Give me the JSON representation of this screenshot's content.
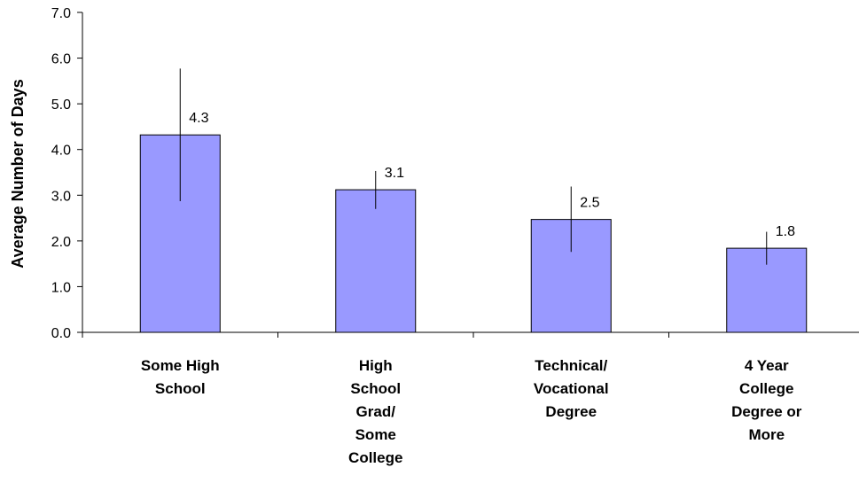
{
  "chart_data": {
    "type": "bar",
    "categories": [
      [
        "Some High",
        "School"
      ],
      [
        "High",
        "School",
        "Grad/",
        "Some",
        "College"
      ],
      [
        "Technical/",
        "Vocational",
        "Degree"
      ],
      [
        "4 Year",
        "College",
        "Degree or",
        "More"
      ]
    ],
    "values": [
      4.32,
      3.12,
      2.47,
      1.84
    ],
    "data_labels": [
      "4.3",
      "3.1",
      "2.5",
      "1.8"
    ],
    "error_bars": [
      {
        "low": 2.87,
        "high": 5.77
      },
      {
        "low": 2.7,
        "high": 3.53
      },
      {
        "low": 1.76,
        "high": 3.19
      },
      {
        "low": 1.48,
        "high": 2.2
      }
    ],
    "ylabel": "Average Number of Days",
    "ylim": [
      0,
      7
    ],
    "yticks": [
      "0.0",
      "1.0",
      "2.0",
      "3.0",
      "4.0",
      "5.0",
      "6.0",
      "7.0"
    ],
    "grid": false,
    "bar_color": "#9999ff"
  }
}
